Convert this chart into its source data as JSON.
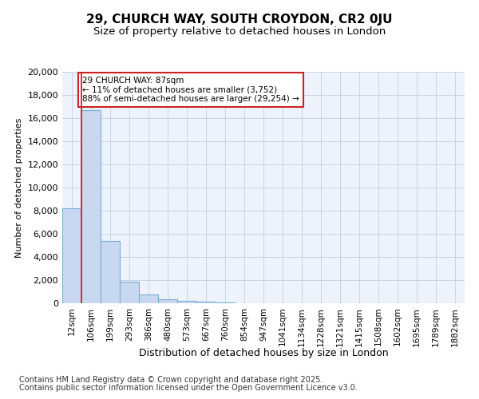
{
  "title": "29, CHURCH WAY, SOUTH CROYDON, CR2 0JU",
  "subtitle": "Size of property relative to detached houses in London",
  "xlabel": "Distribution of detached houses by size in London",
  "ylabel": "Number of detached properties",
  "categories": [
    "12sqm",
    "106sqm",
    "199sqm",
    "293sqm",
    "386sqm",
    "480sqm",
    "573sqm",
    "667sqm",
    "760sqm",
    "854sqm",
    "947sqm",
    "1041sqm",
    "1134sqm",
    "1228sqm",
    "1321sqm",
    "1415sqm",
    "1508sqm",
    "1602sqm",
    "1695sqm",
    "1789sqm",
    "1882sqm"
  ],
  "values": [
    8200,
    16700,
    5400,
    1850,
    780,
    320,
    200,
    150,
    100,
    0,
    0,
    0,
    0,
    0,
    0,
    0,
    0,
    0,
    0,
    0,
    0
  ],
  "bar_color": "#c8d8f0",
  "bar_edge_color": "#7bafd4",
  "grid_color": "#c8d4e8",
  "annotation_line_color": "#cc2222",
  "annotation_box_text": "29 CHURCH WAY: 87sqm\n← 11% of detached houses are smaller (3,752)\n88% of semi-detached houses are larger (29,254) →",
  "annotation_box_color": "#cc2222",
  "annotation_box_facecolor": "white",
  "footer_line1": "Contains HM Land Registry data © Crown copyright and database right 2025.",
  "footer_line2": "Contains public sector information licensed under the Open Government Licence v3.0.",
  "ylim": [
    0,
    20000
  ],
  "yticks": [
    0,
    2000,
    4000,
    6000,
    8000,
    10000,
    12000,
    14000,
    16000,
    18000,
    20000
  ],
  "background_color": "#eef2fa",
  "fig_background_color": "#ffffff",
  "title_fontsize": 11,
  "subtitle_fontsize": 9.5,
  "tick_fontsize": 7.5,
  "ylabel_fontsize": 8,
  "xlabel_fontsize": 9,
  "footer_fontsize": 7
}
